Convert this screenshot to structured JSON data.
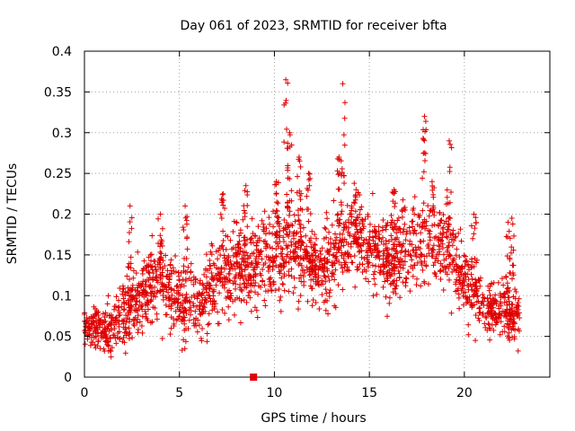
{
  "chart_data": {
    "type": "scatter",
    "title": "Day 061 of 2023, SRMTID for receiver bfta",
    "xlabel": "GPS time / hours",
    "ylabel": "SRMTID / TECUs",
    "xlim": [
      0,
      24.5
    ],
    "ylim": [
      0,
      0.4
    ],
    "x_ticks": [
      0,
      5,
      10,
      15,
      20
    ],
    "x_tick_labels": [
      "0",
      "5",
      "10",
      "15",
      "20"
    ],
    "y_ticks": [
      0,
      0.05,
      0.1,
      0.15,
      0.2,
      0.25,
      0.3,
      0.35,
      0.4
    ],
    "y_tick_labels": [
      "0",
      "0.05",
      "0.1",
      "0.15",
      "0.2",
      "0.25",
      "0.3",
      "0.35",
      "0.4"
    ],
    "grid": true,
    "series_color": "#e00000",
    "marker": {
      "x": 8.9,
      "y": 0
    },
    "envelope": {
      "description_hours": [
        0,
        1,
        2,
        3,
        4,
        5,
        6,
        7,
        8,
        9,
        10,
        11,
        12,
        13,
        14,
        15,
        16,
        17,
        18,
        19,
        20,
        21,
        22,
        22.9
      ],
      "median": [
        0.065,
        0.055,
        0.07,
        0.1,
        0.12,
        0.095,
        0.09,
        0.12,
        0.14,
        0.135,
        0.15,
        0.16,
        0.13,
        0.14,
        0.17,
        0.165,
        0.14,
        0.16,
        0.17,
        0.155,
        0.12,
        0.085,
        0.08,
        0.07
      ],
      "spread": [
        0.02,
        0.025,
        0.04,
        0.04,
        0.045,
        0.045,
        0.04,
        0.045,
        0.045,
        0.045,
        0.05,
        0.05,
        0.04,
        0.05,
        0.045,
        0.04,
        0.045,
        0.05,
        0.055,
        0.05,
        0.04,
        0.03,
        0.03,
        0.025
      ]
    },
    "peaks": [
      {
        "x": 2.4,
        "y": 0.21
      },
      {
        "x": 4.0,
        "y": 0.2
      },
      {
        "x": 5.3,
        "y": 0.21
      },
      {
        "x": 7.3,
        "y": 0.225
      },
      {
        "x": 8.5,
        "y": 0.235
      },
      {
        "x": 10.1,
        "y": 0.24
      },
      {
        "x": 10.6,
        "y": 0.365
      },
      {
        "x": 10.8,
        "y": 0.3
      },
      {
        "x": 11.3,
        "y": 0.27
      },
      {
        "x": 11.8,
        "y": 0.25
      },
      {
        "x": 13.6,
        "y": 0.36
      },
      {
        "x": 13.4,
        "y": 0.27
      },
      {
        "x": 14.3,
        "y": 0.23
      },
      {
        "x": 16.3,
        "y": 0.23
      },
      {
        "x": 17.9,
        "y": 0.32
      },
      {
        "x": 18.3,
        "y": 0.24
      },
      {
        "x": 19.2,
        "y": 0.29
      },
      {
        "x": 20.5,
        "y": 0.2
      },
      {
        "x": 22.5,
        "y": 0.195
      },
      {
        "x": 22.3,
        "y": 0.19
      }
    ],
    "n_points": 2200,
    "x_range_hours": [
      0,
      22.9
    ]
  }
}
